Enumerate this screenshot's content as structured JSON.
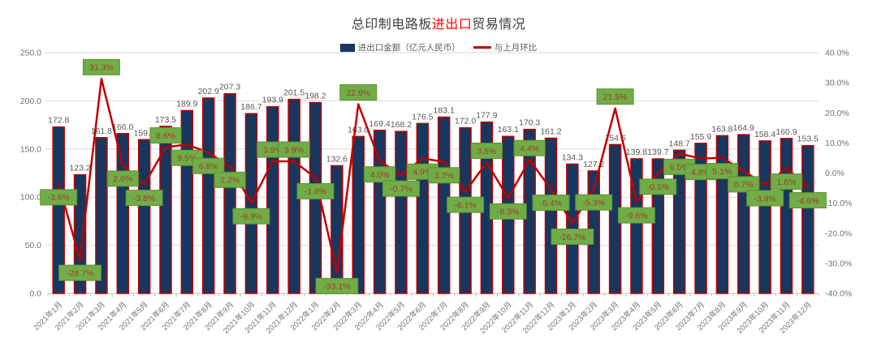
{
  "title": {
    "prefix": "总印制电路板",
    "highlight": "进出口",
    "suffix": "贸易情况",
    "highlight_color": "#FF0000"
  },
  "legend": {
    "items": [
      {
        "label": "进出口金额（亿元人民币）",
        "type": "bar-swatch",
        "color": "#17375E"
      },
      {
        "label": "与上月环比",
        "type": "line-swatch",
        "color": "#C00000"
      }
    ]
  },
  "chart_data": {
    "type": "bar",
    "title": "总印制电路板进出口贸易情况",
    "legend_position": "top",
    "grid": true,
    "categories": [
      "2021年1月",
      "2021年2月",
      "2021年3月",
      "2021年4月",
      "2021年5月",
      "2021年6月",
      "2021年7月",
      "2021年8月",
      "2021年9月",
      "2021年10月",
      "2021年11月",
      "2021年12月",
      "2022年1月",
      "2022年2月",
      "2022年3月",
      "2022年4月",
      "2022年5月",
      "2022年6月",
      "2022年7月",
      "2022年8月",
      "2022年9月",
      "2022年10月",
      "2022年11月",
      "2022年12月",
      "2023年1月",
      "2023年2月",
      "2023年3月",
      "2023年4月",
      "2023年5月",
      "2023年6月",
      "2023年7月",
      "2023年8月",
      "2023年9月",
      "2023年10月",
      "2023年11月",
      "2023年12月"
    ],
    "series": [
      {
        "name": "进出口金额（亿元人民币）",
        "type": "bar",
        "axis": "left",
        "color": "#17375E",
        "border_color": "#C00000",
        "values": [
          172.8,
          123.2,
          161.8,
          166.0,
          159.7,
          173.5,
          189.9,
          202.9,
          207.3,
          186.7,
          193.9,
          201.5,
          198.2,
          132.6,
          163.0,
          169.4,
          168.2,
          176.5,
          183.1,
          172.0,
          177.9,
          163.1,
          170.3,
          161.2,
          134.3,
          127.2,
          154.6,
          139.8,
          139.7,
          148.7,
          155.9,
          163.8,
          164.9,
          158.4,
          160.9,
          153.5
        ],
        "value_labels": [
          "172.8",
          "123.2",
          "161.8",
          "166.0",
          "159.7",
          "173.5",
          "189.9",
          "202.9",
          "207.3",
          "186.7",
          "193.9",
          "201.5",
          "198.2",
          "132.6",
          "163.0",
          "169.4",
          "168.2",
          "176.5",
          "183.1",
          "172.0",
          "177.9",
          "163.1",
          "170.3",
          "161.2",
          "134.3",
          "127.2",
          "154.6",
          "139.8",
          "139.7",
          "148.7",
          "155.9",
          "163.8",
          "164.9",
          "158.4",
          "160.9",
          "153.5"
        ]
      },
      {
        "name": "与上月环比",
        "type": "line",
        "axis": "right",
        "color": "#C00000",
        "values": [
          -3.6,
          -28.7,
          31.3,
          2.6,
          -3.8,
          8.6,
          9.5,
          6.8,
          2.2,
          -9.9,
          3.9,
          3.9,
          -1.6,
          -33.1,
          22.9,
          4.0,
          -0.7,
          4.9,
          3.7,
          -6.1,
          3.5,
          -8.3,
          4.4,
          -5.4,
          -16.7,
          -5.3,
          21.5,
          -9.6,
          -0.1,
          6.5,
          4.8,
          5.1,
          0.7,
          -3.9,
          1.6,
          -4.6
        ],
        "value_labels": [
          "-3.6%",
          "-28.7%",
          "31.3%",
          "2.6%",
          "-3.8%",
          "8.6%",
          "9.5%",
          "6.8%",
          "2.2%",
          "-9.9%",
          "3.9%",
          "3.9%",
          "-1.6%",
          "-33.1%",
          "22.9%",
          "4.0%",
          "-0.7%",
          "4.9%",
          "3.7%",
          "-6.1%",
          "3.5%",
          "-8.3%",
          "4.4%",
          "-5.4%",
          "-16.7%",
          "-5.3%",
          "21.5%",
          "-9.6%",
          "-0.1%",
          "6.5%",
          "4.8%",
          "5.1%",
          "0.7%",
          "-3.9%",
          "1.6%",
          "-4.6%"
        ],
        "label_sides": [
          "below",
          "below",
          "above",
          "below",
          "below",
          "above",
          "below",
          "below",
          "below",
          "below",
          "above",
          "above",
          "below",
          "below",
          "above",
          "below",
          "below",
          "below",
          "below",
          "below",
          "above",
          "below",
          "above",
          "below",
          "below",
          "below",
          "above",
          "below",
          "below",
          "below",
          "below",
          "below",
          "below",
          "below",
          "below",
          "below"
        ],
        "label_bg": "#70AD47",
        "label_border": "#5B9038",
        "label_text_color": "#A03B28"
      }
    ],
    "left_axis": {
      "min": 0,
      "max": 250,
      "tick_values": [
        250,
        200,
        150,
        100,
        50,
        0
      ],
      "tick_labels": [
        "250.0",
        "200.0",
        "150.0",
        "100.0",
        "50.0",
        "0.0"
      ]
    },
    "right_axis": {
      "min": -40,
      "max": 40,
      "tick_values": [
        40,
        30,
        20,
        10,
        0,
        -10,
        -20,
        -30,
        -40
      ],
      "tick_labels": [
        "40.0%",
        "30.0%",
        "20.0%",
        "10.0%",
        "0.0%",
        "-10.0%",
        "-20.0%",
        "-30.0%",
        "-40.0%"
      ]
    }
  }
}
